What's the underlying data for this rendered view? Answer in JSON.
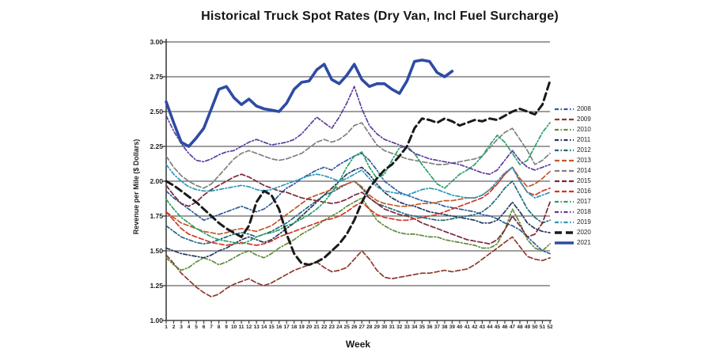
{
  "title": "Historical Truck Spot Rates (Dry Van, Incl Fuel Surcharge)",
  "chart_data": {
    "type": "line",
    "title": "Historical Truck Spot Rates (Dry Van, Incl Fuel Surcharge)",
    "xlabel": "Week",
    "ylabel": "Revenue per Mile ($ Dollars)",
    "ylim": [
      1.0,
      3.0
    ],
    "grid": true,
    "legend_position": "right",
    "yticks": [
      "3.00",
      "2.75",
      "2.50",
      "2.25",
      "2.00",
      "1.75",
      "1.50",
      "1.25",
      "1.00"
    ],
    "xticks": [
      "1",
      "2",
      "3",
      "4",
      "5",
      "6",
      "7",
      "8",
      "9",
      "10",
      "11",
      "12",
      "13",
      "14",
      "15",
      "16",
      "17",
      "18",
      "19",
      "20",
      "21",
      "22",
      "23",
      "24",
      "25",
      "26",
      "27",
      "28",
      "29",
      "30",
      "31",
      "32",
      "33",
      "34",
      "35",
      "36",
      "37",
      "38",
      "39",
      "40",
      "41",
      "42",
      "43",
      "44",
      "45",
      "46",
      "47",
      "48",
      "49",
      "50",
      "51",
      "52"
    ],
    "series": [
      {
        "name": "2008",
        "color": "#2E5B9E",
        "dash": "dash-dot",
        "width": 1.7,
        "values": [
          1.93,
          1.88,
          1.84,
          1.8,
          1.76,
          1.72,
          1.74,
          1.76,
          1.78,
          1.8,
          1.82,
          1.8,
          1.78,
          1.8,
          1.84,
          1.9,
          1.95,
          1.98,
          2.02,
          2.05,
          2.08,
          2.1,
          2.08,
          2.12,
          2.15,
          2.18,
          2.2,
          2.15,
          2.08,
          2.0,
          1.96,
          1.92,
          1.9,
          1.88,
          1.86,
          1.85,
          1.84,
          1.82,
          1.81,
          1.8,
          1.79,
          1.78,
          1.76,
          1.75,
          1.73,
          1.7,
          1.68,
          1.65,
          1.6,
          1.55,
          1.5,
          1.48
        ]
      },
      {
        "name": "2009",
        "color": "#8E3A2C",
        "dash": "dash",
        "width": 1.7,
        "values": [
          1.47,
          1.41,
          1.34,
          1.29,
          1.24,
          1.2,
          1.17,
          1.19,
          1.23,
          1.26,
          1.28,
          1.3,
          1.27,
          1.25,
          1.27,
          1.3,
          1.33,
          1.36,
          1.38,
          1.4,
          1.42,
          1.38,
          1.35,
          1.36,
          1.38,
          1.44,
          1.5,
          1.44,
          1.36,
          1.31,
          1.3,
          1.31,
          1.32,
          1.33,
          1.34,
          1.34,
          1.35,
          1.36,
          1.35,
          1.36,
          1.37,
          1.4,
          1.44,
          1.48,
          1.52,
          1.56,
          1.6,
          1.53,
          1.46,
          1.44,
          1.43,
          1.45
        ]
      },
      {
        "name": "2010",
        "color": "#5E8C3A",
        "dash": "dash-dot",
        "width": 1.7,
        "values": [
          1.45,
          1.4,
          1.36,
          1.38,
          1.42,
          1.45,
          1.43,
          1.4,
          1.42,
          1.45,
          1.48,
          1.5,
          1.47,
          1.45,
          1.48,
          1.52,
          1.55,
          1.58,
          1.62,
          1.65,
          1.68,
          1.72,
          1.75,
          1.78,
          1.82,
          1.85,
          1.88,
          1.8,
          1.72,
          1.68,
          1.65,
          1.63,
          1.62,
          1.62,
          1.61,
          1.6,
          1.6,
          1.58,
          1.57,
          1.56,
          1.55,
          1.54,
          1.52,
          1.52,
          1.55,
          1.65,
          1.8,
          1.7,
          1.58,
          1.52,
          1.5,
          1.55
        ]
      },
      {
        "name": "2011",
        "color": "#24385C",
        "dash": "dash-dot",
        "width": 1.7,
        "values": [
          1.52,
          1.5,
          1.48,
          1.47,
          1.46,
          1.45,
          1.47,
          1.5,
          1.52,
          1.55,
          1.58,
          1.6,
          1.58,
          1.56,
          1.58,
          1.62,
          1.66,
          1.7,
          1.75,
          1.8,
          1.85,
          1.9,
          1.95,
          2.0,
          2.05,
          2.08,
          2.1,
          2.05,
          1.98,
          1.92,
          1.88,
          1.85,
          1.83,
          1.82,
          1.8,
          1.78,
          1.77,
          1.76,
          1.75,
          1.74,
          1.73,
          1.72,
          1.7,
          1.7,
          1.72,
          1.78,
          1.85,
          1.78,
          1.7,
          1.66,
          1.64,
          1.63
        ]
      },
      {
        "name": "2012",
        "color": "#20697C",
        "dash": "dash-dot",
        "width": 1.7,
        "values": [
          1.68,
          1.64,
          1.6,
          1.58,
          1.56,
          1.55,
          1.56,
          1.58,
          1.6,
          1.62,
          1.63,
          1.62,
          1.6,
          1.62,
          1.64,
          1.67,
          1.7,
          1.74,
          1.78,
          1.82,
          1.86,
          1.9,
          1.92,
          1.95,
          1.98,
          2.0,
          1.95,
          1.88,
          1.84,
          1.82,
          1.8,
          1.78,
          1.76,
          1.75,
          1.74,
          1.73,
          1.72,
          1.72,
          1.73,
          1.74,
          1.75,
          1.76,
          1.78,
          1.82,
          1.88,
          1.95,
          2.0,
          1.9,
          1.8,
          1.74,
          1.7,
          1.72
        ]
      },
      {
        "name": "2013",
        "color": "#C05A2B",
        "dash": "dash",
        "width": 1.7,
        "values": [
          1.78,
          1.74,
          1.7,
          1.68,
          1.66,
          1.64,
          1.63,
          1.62,
          1.63,
          1.65,
          1.66,
          1.65,
          1.64,
          1.66,
          1.68,
          1.72,
          1.76,
          1.8,
          1.84,
          1.88,
          1.9,
          1.92,
          1.94,
          1.96,
          1.98,
          2.0,
          1.96,
          1.9,
          1.86,
          1.84,
          1.83,
          1.82,
          1.82,
          1.83,
          1.84,
          1.84,
          1.85,
          1.86,
          1.86,
          1.87,
          1.88,
          1.88,
          1.9,
          1.94,
          1.98,
          2.05,
          2.1,
          2.02,
          1.96,
          1.98,
          2.02,
          2.07
        ]
      },
      {
        "name": "2014",
        "color": "#808080",
        "dash": "dash",
        "width": 1.7,
        "values": [
          2.18,
          2.1,
          2.04,
          2.0,
          1.97,
          1.95,
          1.98,
          2.04,
          2.1,
          2.16,
          2.2,
          2.22,
          2.2,
          2.18,
          2.16,
          2.15,
          2.16,
          2.18,
          2.2,
          2.24,
          2.28,
          2.3,
          2.28,
          2.3,
          2.34,
          2.4,
          2.42,
          2.34,
          2.26,
          2.22,
          2.2,
          2.18,
          2.16,
          2.15,
          2.14,
          2.13,
          2.12,
          2.12,
          2.13,
          2.14,
          2.15,
          2.16,
          2.18,
          2.24,
          2.3,
          2.35,
          2.38,
          2.3,
          2.22,
          2.12,
          2.15,
          2.2
        ]
      },
      {
        "name": "2015",
        "color": "#7C2838",
        "dash": "dash",
        "width": 1.7,
        "values": [
          1.97,
          1.9,
          1.84,
          1.82,
          1.85,
          1.9,
          1.94,
          1.97,
          2.0,
          2.03,
          2.05,
          2.03,
          2.0,
          1.97,
          1.95,
          1.93,
          1.92,
          1.9,
          1.88,
          1.87,
          1.86,
          1.85,
          1.84,
          1.85,
          1.87,
          1.9,
          1.92,
          1.88,
          1.84,
          1.8,
          1.78,
          1.76,
          1.75,
          1.73,
          1.7,
          1.68,
          1.66,
          1.64,
          1.62,
          1.6,
          1.58,
          1.57,
          1.56,
          1.55,
          1.58,
          1.65,
          1.75,
          1.68,
          1.6,
          1.62,
          1.7,
          1.85
        ]
      },
      {
        "name": "2016",
        "color": "#CE3A2A",
        "dash": "dash",
        "width": 1.7,
        "values": [
          1.78,
          1.72,
          1.66,
          1.62,
          1.6,
          1.58,
          1.56,
          1.55,
          1.54,
          1.55,
          1.56,
          1.55,
          1.54,
          1.55,
          1.57,
          1.6,
          1.62,
          1.64,
          1.66,
          1.68,
          1.7,
          1.72,
          1.73,
          1.75,
          1.78,
          1.82,
          1.85,
          1.8,
          1.76,
          1.74,
          1.73,
          1.72,
          1.72,
          1.73,
          1.74,
          1.75,
          1.76,
          1.78,
          1.8,
          1.82,
          1.84,
          1.86,
          1.88,
          1.92,
          1.98,
          2.05,
          2.1,
          2.0,
          1.92,
          1.9,
          1.93,
          1.95
        ]
      },
      {
        "name": "2017",
        "color": "#27A066",
        "dash": "dash-dot",
        "width": 1.7,
        "values": [
          1.87,
          1.8,
          1.74,
          1.7,
          1.66,
          1.63,
          1.6,
          1.58,
          1.57,
          1.56,
          1.55,
          1.57,
          1.6,
          1.62,
          1.63,
          1.65,
          1.68,
          1.7,
          1.73,
          1.76,
          1.8,
          1.85,
          1.92,
          2.0,
          2.1,
          2.18,
          2.21,
          2.1,
          2.02,
          2.05,
          2.15,
          2.24,
          2.25,
          2.2,
          2.12,
          2.05,
          1.98,
          1.95,
          2.0,
          2.05,
          2.08,
          2.12,
          2.18,
          2.26,
          2.33,
          2.28,
          2.2,
          2.12,
          2.15,
          2.25,
          2.35,
          2.42
        ]
      },
      {
        "name": "2018",
        "color": "#5C3C9E",
        "dash": "dash-dot",
        "width": 1.7,
        "values": [
          2.47,
          2.36,
          2.27,
          2.2,
          2.15,
          2.14,
          2.16,
          2.19,
          2.21,
          2.22,
          2.25,
          2.28,
          2.3,
          2.28,
          2.26,
          2.27,
          2.28,
          2.3,
          2.34,
          2.4,
          2.46,
          2.42,
          2.38,
          2.46,
          2.56,
          2.68,
          2.52,
          2.4,
          2.34,
          2.3,
          2.28,
          2.26,
          2.24,
          2.2,
          2.18,
          2.16,
          2.15,
          2.14,
          2.13,
          2.12,
          2.1,
          2.08,
          2.06,
          2.05,
          2.08,
          2.15,
          2.22,
          2.15,
          2.1,
          2.08,
          2.1,
          2.12
        ]
      },
      {
        "name": "2019",
        "color": "#2C96BE",
        "dash": "dash-dot",
        "width": 1.7,
        "values": [
          2.12,
          2.05,
          2.0,
          1.96,
          1.94,
          1.93,
          1.93,
          1.94,
          1.95,
          1.96,
          1.97,
          1.96,
          1.94,
          1.93,
          1.94,
          1.96,
          1.98,
          2.0,
          2.02,
          2.04,
          2.05,
          2.04,
          2.02,
          2.0,
          2.02,
          2.05,
          2.08,
          2.02,
          1.96,
          1.93,
          1.92,
          1.91,
          1.9,
          1.92,
          1.94,
          1.95,
          1.94,
          1.92,
          1.9,
          1.89,
          1.88,
          1.88,
          1.9,
          1.94,
          2.0,
          2.06,
          2.1,
          2.0,
          1.92,
          1.88,
          1.9,
          1.92
        ]
      },
      {
        "name": "2020",
        "color": "#1A1A1A",
        "dash": "long-dash",
        "width": 3,
        "values": [
          2.0,
          1.97,
          1.93,
          1.89,
          1.85,
          1.8,
          1.75,
          1.7,
          1.66,
          1.63,
          1.6,
          1.68,
          1.85,
          1.93,
          1.9,
          1.8,
          1.62,
          1.48,
          1.41,
          1.4,
          1.42,
          1.45,
          1.5,
          1.55,
          1.62,
          1.72,
          1.85,
          1.95,
          2.02,
          2.08,
          2.12,
          2.18,
          2.25,
          2.38,
          2.45,
          2.44,
          2.42,
          2.45,
          2.43,
          2.4,
          2.42,
          2.44,
          2.43,
          2.45,
          2.44,
          2.47,
          2.5,
          2.52,
          2.5,
          2.48,
          2.55,
          2.72
        ]
      },
      {
        "name": "2021",
        "color": "#2E4BA4",
        "dash": "solid",
        "width": 3.6,
        "values": [
          2.57,
          2.42,
          2.28,
          2.25,
          2.31,
          2.38,
          2.52,
          2.66,
          2.68,
          2.6,
          2.55,
          2.59,
          2.54,
          2.52,
          2.51,
          2.5,
          2.56,
          2.66,
          2.71,
          2.72,
          2.8,
          2.84,
          2.73,
          2.7,
          2.76,
          2.84,
          2.73,
          2.68,
          2.7,
          2.7,
          2.66,
          2.63,
          2.72,
          2.86,
          2.87,
          2.86,
          2.78,
          2.75,
          2.79,
          null,
          null,
          null,
          null,
          null,
          null,
          null,
          null,
          null,
          null,
          null,
          null,
          null
        ]
      }
    ]
  }
}
